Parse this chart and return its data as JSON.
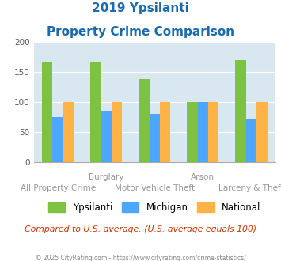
{
  "title_line1": "2019 Ypsilanti",
  "title_line2": "Property Crime Comparison",
  "categories": [
    "All Property Crime",
    "Burglary",
    "Motor Vehicle Theft",
    "Arson",
    "Larceny & Theft"
  ],
  "x_labels_line1": [
    "",
    "Burglary",
    "",
    "Arson",
    ""
  ],
  "x_labels_line2": [
    "All Property Crime",
    "",
    "Motor Vehicle Theft",
    "",
    "Larceny & Theft"
  ],
  "ypsilanti": [
    165,
    165,
    138,
    100,
    170
  ],
  "michigan": [
    75,
    85,
    80,
    100,
    72
  ],
  "national": [
    100,
    100,
    100,
    100,
    100
  ],
  "color_ypsilanti": "#7dc242",
  "color_michigan": "#4da6ff",
  "color_national": "#ffb347",
  "ylim": [
    0,
    200
  ],
  "yticks": [
    0,
    50,
    100,
    150,
    200
  ],
  "bg_color": "#d9e8f0",
  "title_color": "#1a6aad",
  "footer_text": "© 2025 CityRating.com - https://www.cityrating.com/crime-statistics/",
  "note_text": "Compared to U.S. average. (U.S. average equals 100)",
  "note_color": "#cc3300",
  "footer_color": "#888888",
  "bar_width": 0.22,
  "grid_color": "#ffffff"
}
